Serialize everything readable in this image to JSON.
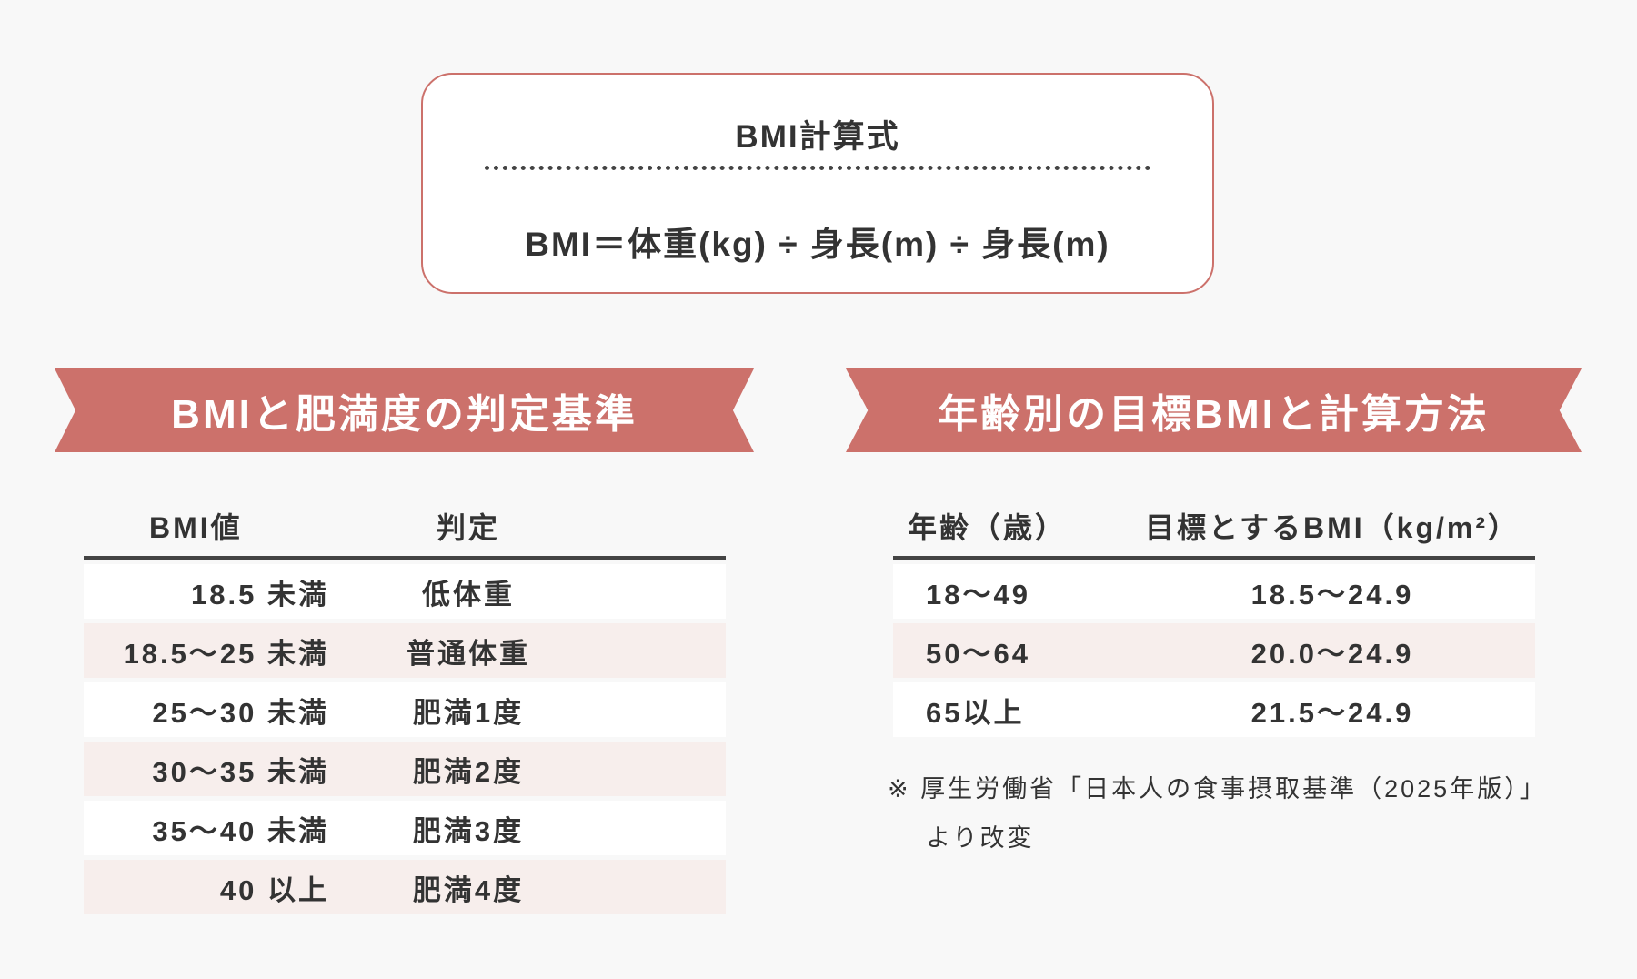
{
  "formula": {
    "title": "BMI計算式",
    "expression": "BMI＝体重(kg) ÷ 身長(m) ÷ 身長(m)"
  },
  "left_section": {
    "title": "BMIと肥満度の判定基準",
    "headers": [
      "BMI値",
      "判定"
    ],
    "rows": [
      [
        "18.5 未満",
        "低体重"
      ],
      [
        "18.5〜25 未満",
        "普通体重"
      ],
      [
        "25〜30 未満",
        "肥満1度"
      ],
      [
        "30〜35 未満",
        "肥満2度"
      ],
      [
        "35〜40 未満",
        "肥満3度"
      ],
      [
        "40 以上",
        "肥満4度"
      ]
    ]
  },
  "right_section": {
    "title": "年齢別の目標BMIと計算方法",
    "headers": [
      "年齢（歳）",
      "目標とするBMI（kg/m²）"
    ],
    "rows": [
      [
        "18〜49",
        "18.5〜24.9"
      ],
      [
        "50〜64",
        "20.0〜24.9"
      ],
      [
        "65以上",
        "21.5〜24.9"
      ]
    ],
    "note_line1": "※ 厚生労働省「日本人の食事摂取基準（2025年版）」",
    "note_line2": "より改変"
  },
  "colors": {
    "accent": "#cc716b",
    "stripe": "#f7eeec",
    "background": "#f8f8f8"
  }
}
